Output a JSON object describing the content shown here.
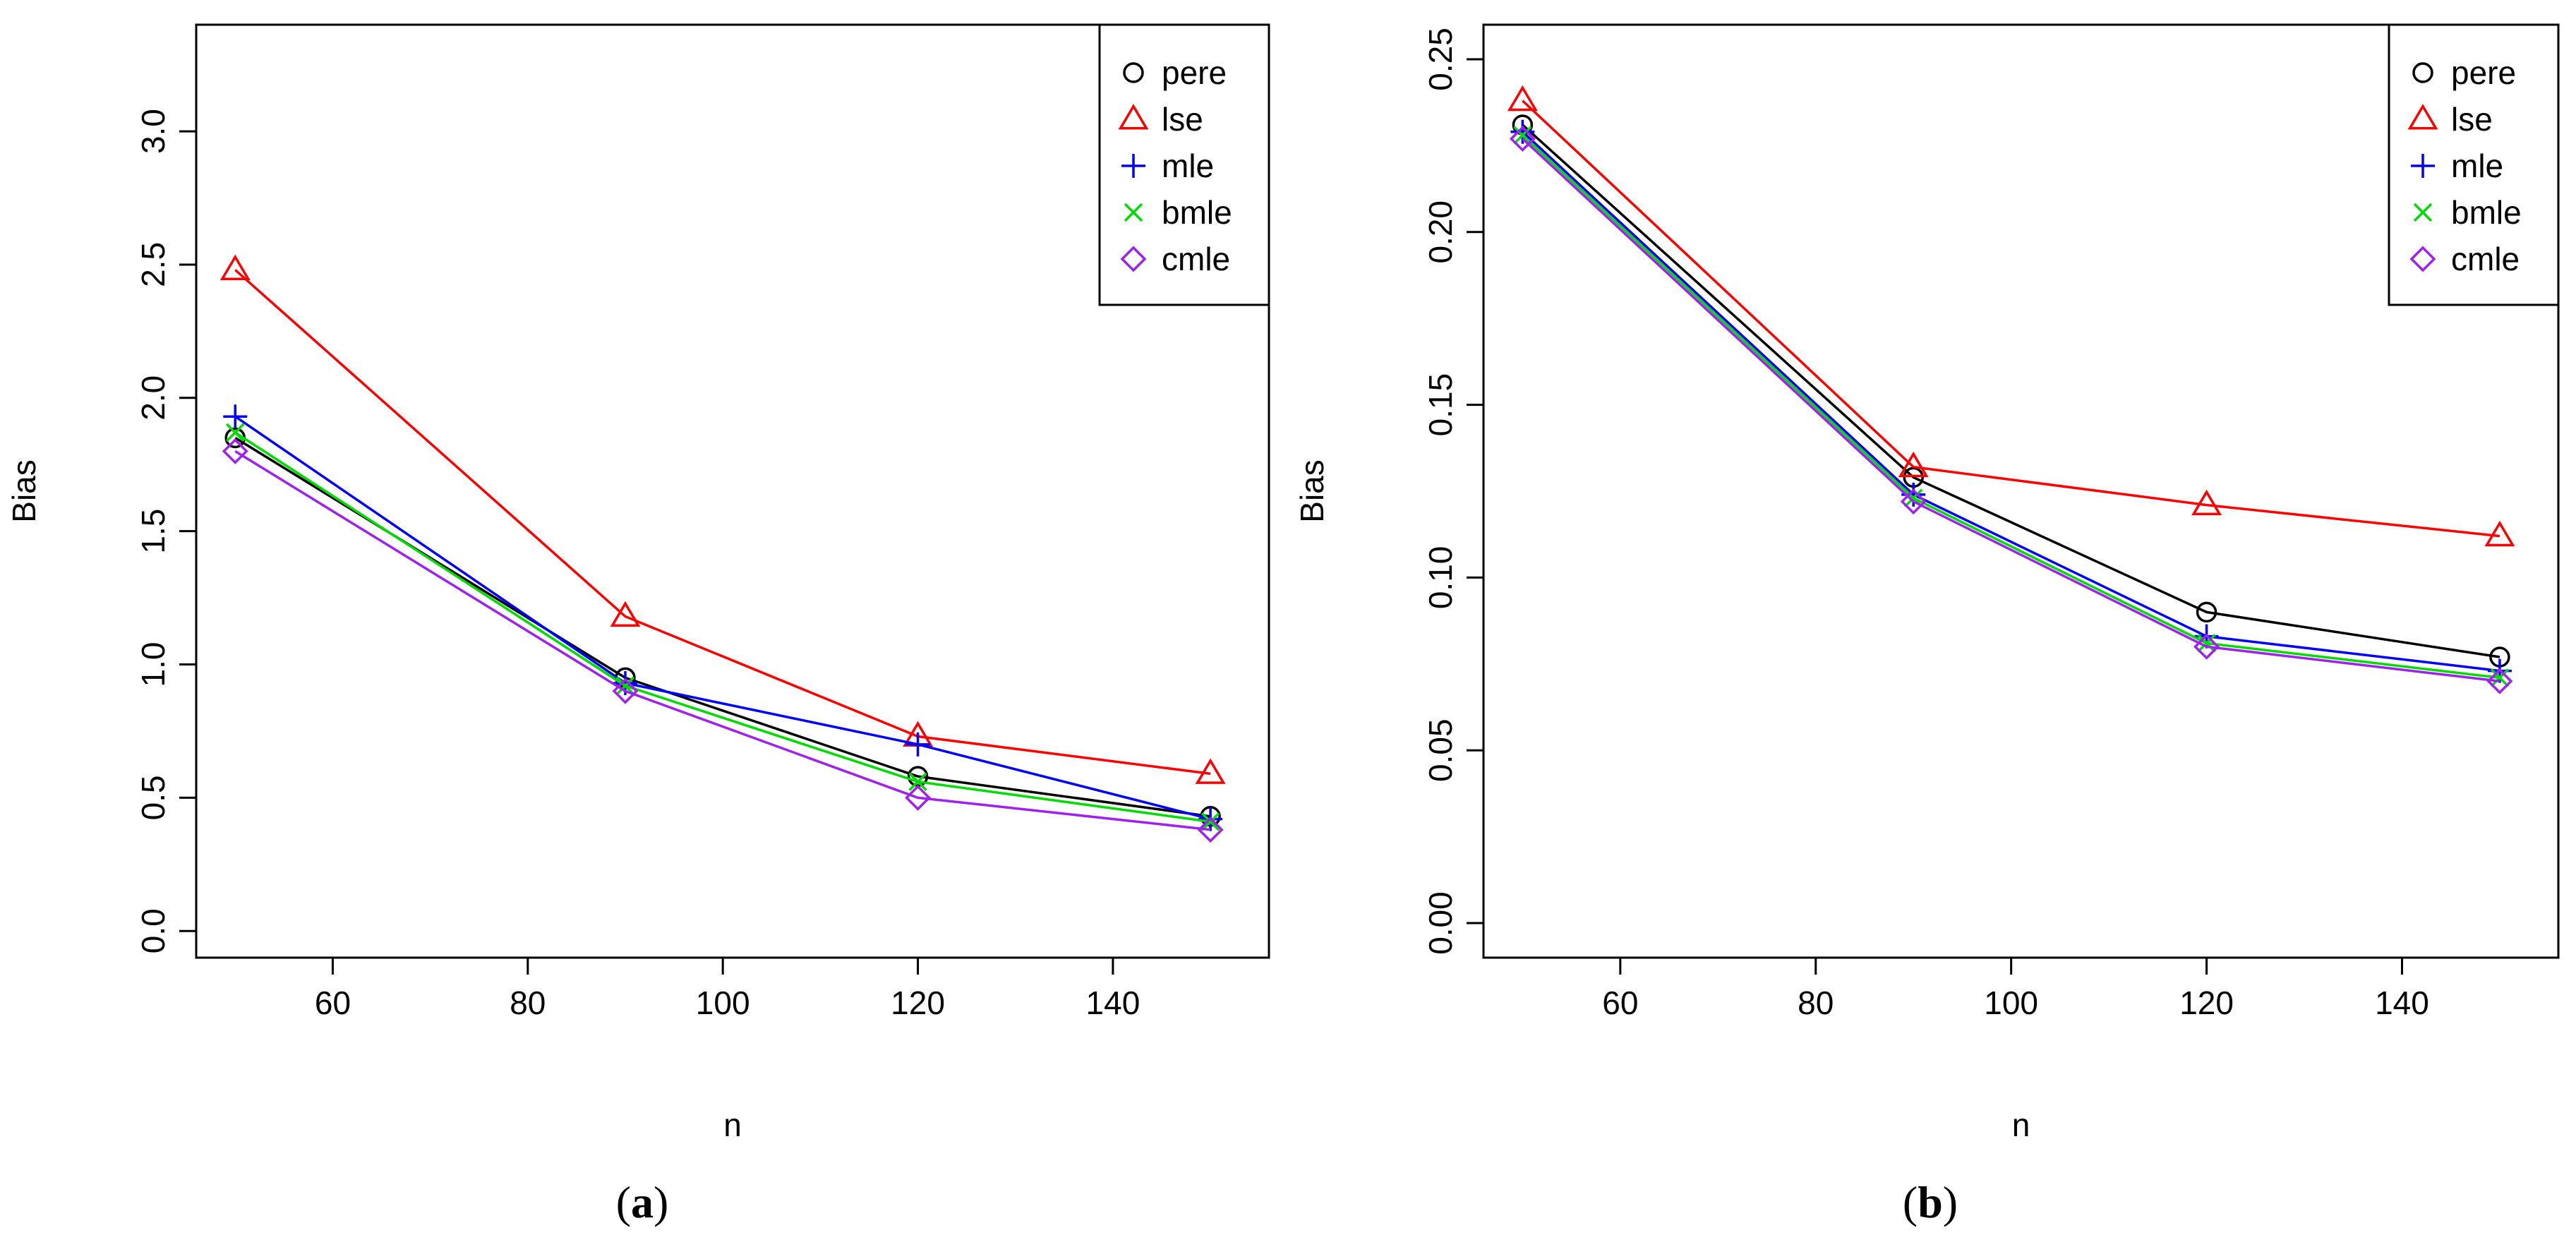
{
  "chart_data": [
    {
      "id": "a",
      "panel_label": "a",
      "type": "line",
      "title": "",
      "xlabel": "n",
      "ylabel": "Bias",
      "xlim": [
        46,
        156
      ],
      "ylim": [
        -0.1,
        3.4
      ],
      "xticks": [
        60,
        80,
        100,
        120,
        140
      ],
      "yticks": [
        0.0,
        0.5,
        1.0,
        1.5,
        2.0,
        2.5,
        3.0
      ],
      "ytick_labels": [
        "0.0",
        "0.5",
        "1.0",
        "1.5",
        "2.0",
        "2.5",
        "3.0"
      ],
      "grid": false,
      "legend_position": "top-right",
      "x": [
        50,
        90,
        120,
        150
      ],
      "series": [
        {
          "name": "pere",
          "color": "#000000",
          "marker": "circle",
          "values": [
            1.85,
            0.95,
            0.58,
            0.43
          ]
        },
        {
          "name": "lse",
          "color": "#ff0000",
          "marker": "triangle",
          "values": [
            2.48,
            1.18,
            0.73,
            0.59
          ]
        },
        {
          "name": "mle",
          "color": "#0000ff",
          "marker": "plus",
          "values": [
            1.93,
            0.93,
            0.7,
            0.42
          ]
        },
        {
          "name": "bmle",
          "color": "#00dd00",
          "marker": "cross",
          "values": [
            1.87,
            0.92,
            0.56,
            0.41
          ]
        },
        {
          "name": "cmle",
          "color": "#a020f0",
          "marker": "diamond",
          "values": [
            1.8,
            0.9,
            0.5,
            0.38
          ]
        }
      ]
    },
    {
      "id": "b",
      "panel_label": "b",
      "type": "line",
      "title": "",
      "xlabel": "n",
      "ylabel": "Bias",
      "xlim": [
        46,
        156
      ],
      "ylim": [
        -0.01,
        0.26
      ],
      "xticks": [
        60,
        80,
        100,
        120,
        140
      ],
      "yticks": [
        0.0,
        0.05,
        0.1,
        0.15,
        0.2,
        0.25
      ],
      "ytick_labels": [
        "0.00",
        "0.05",
        "0.10",
        "0.15",
        "0.20",
        "0.25"
      ],
      "grid": false,
      "legend_position": "top-right",
      "x": [
        50,
        90,
        120,
        150
      ],
      "series": [
        {
          "name": "pere",
          "color": "#000000",
          "marker": "circle",
          "values": [
            0.231,
            0.129,
            0.09,
            0.077
          ]
        },
        {
          "name": "lse",
          "color": "#ff0000",
          "marker": "triangle",
          "values": [
            0.238,
            0.132,
            0.121,
            0.112
          ]
        },
        {
          "name": "mle",
          "color": "#0000ff",
          "marker": "plus",
          "values": [
            0.229,
            0.124,
            0.083,
            0.073
          ]
        },
        {
          "name": "bmle",
          "color": "#00dd00",
          "marker": "cross",
          "values": [
            0.228,
            0.123,
            0.081,
            0.071
          ]
        },
        {
          "name": "cmle",
          "color": "#a020f0",
          "marker": "diamond",
          "values": [
            0.227,
            0.122,
            0.08,
            0.07
          ]
        }
      ]
    }
  ]
}
